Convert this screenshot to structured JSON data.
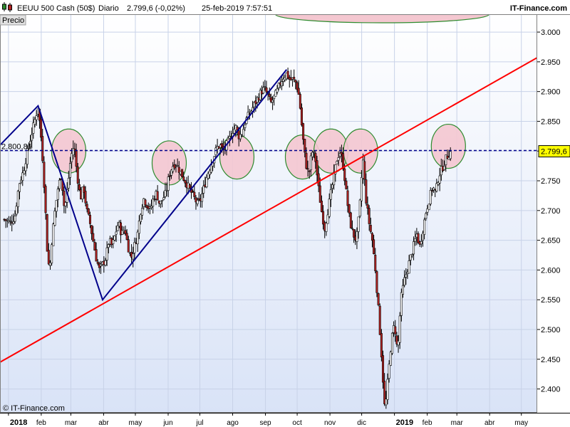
{
  "header": {
    "instrument": "EEUU 500 Cash (50$)",
    "period": "Diario",
    "last": "2.799,6 (-0,02%)",
    "datetime": "25-feb-2019 7:57:51",
    "brand": "IT-Finance.com"
  },
  "panel_label": "Precio",
  "copyright": "© IT-Finance.com",
  "chart_data": {
    "type": "candlestick",
    "ylim": [
      2360,
      3030
    ],
    "y_ticks": [
      2400,
      2450,
      2500,
      2550,
      2600,
      2650,
      2700,
      2750,
      2800,
      2850,
      2900,
      2950,
      3000
    ],
    "y_tick_labels": [
      "2.400",
      "2.450",
      "2.500",
      "2.550",
      "2.600",
      "2.650",
      "2.700",
      "2.750",
      "2.800",
      "2.850",
      "2.900",
      "2.950",
      "3.000"
    ],
    "x_ticks": [
      {
        "label": "2018",
        "day": 0,
        "year": true
      },
      {
        "label": "feb",
        "day": 31
      },
      {
        "label": "mar",
        "day": 59
      },
      {
        "label": "abr",
        "day": 90
      },
      {
        "label": "may",
        "day": 120
      },
      {
        "label": "jun",
        "day": 151
      },
      {
        "label": "jul",
        "day": 181
      },
      {
        "label": "ago",
        "day": 212
      },
      {
        "label": "sep",
        "day": 243
      },
      {
        "label": "oct",
        "day": 273
      },
      {
        "label": "nov",
        "day": 304
      },
      {
        "label": "dic",
        "day": 334
      },
      {
        "label": "2019",
        "day": 365,
        "year": true
      },
      {
        "label": "feb",
        "day": 396
      },
      {
        "label": "mar",
        "day": 424
      },
      {
        "label": "abr",
        "day": 455
      },
      {
        "label": "may",
        "day": 485
      }
    ],
    "x_range_days": [
      -8,
      500
    ],
    "price_path": [
      [
        -4,
        2685
      ],
      [
        2,
        2680
      ],
      [
        6,
        2690
      ],
      [
        10,
        2745
      ],
      [
        14,
        2765
      ],
      [
        18,
        2800
      ],
      [
        22,
        2830
      ],
      [
        26,
        2860
      ],
      [
        28,
        2875
      ],
      [
        31,
        2820
      ],
      [
        33,
        2770
      ],
      [
        35,
        2700
      ],
      [
        37,
        2620
      ],
      [
        39,
        2600
      ],
      [
        41,
        2650
      ],
      [
        44,
        2700
      ],
      [
        47,
        2740
      ],
      [
        50,
        2760
      ],
      [
        53,
        2700
      ],
      [
        56,
        2740
      ],
      [
        59,
        2790
      ],
      [
        62,
        2810
      ],
      [
        65,
        2760
      ],
      [
        68,
        2720
      ],
      [
        71,
        2740
      ],
      [
        74,
        2700
      ],
      [
        77,
        2680
      ],
      [
        80,
        2650
      ],
      [
        83,
        2620
      ],
      [
        86,
        2600
      ],
      [
        89,
        2610
      ],
      [
        92,
        2620
      ],
      [
        95,
        2650
      ],
      [
        98,
        2640
      ],
      [
        101,
        2660
      ],
      [
        104,
        2680
      ],
      [
        107,
        2660
      ],
      [
        110,
        2670
      ],
      [
        113,
        2640
      ],
      [
        116,
        2620
      ],
      [
        119,
        2640
      ],
      [
        122,
        2660
      ],
      [
        125,
        2700
      ],
      [
        128,
        2720
      ],
      [
        131,
        2710
      ],
      [
        134,
        2700
      ],
      [
        137,
        2720
      ],
      [
        140,
        2730
      ],
      [
        143,
        2710
      ],
      [
        146,
        2720
      ],
      [
        149,
        2730
      ],
      [
        152,
        2760
      ],
      [
        155,
        2775
      ],
      [
        158,
        2780
      ],
      [
        161,
        2770
      ],
      [
        164,
        2760
      ],
      [
        167,
        2750
      ],
      [
        170,
        2740
      ],
      [
        173,
        2730
      ],
      [
        176,
        2720
      ],
      [
        179,
        2710
      ],
      [
        182,
        2720
      ],
      [
        185,
        2740
      ],
      [
        188,
        2760
      ],
      [
        191,
        2775
      ],
      [
        194,
        2790
      ],
      [
        197,
        2805
      ],
      [
        200,
        2810
      ],
      [
        203,
        2800
      ],
      [
        206,
        2810
      ],
      [
        209,
        2820
      ],
      [
        212,
        2835
      ],
      [
        215,
        2840
      ],
      [
        218,
        2825
      ],
      [
        221,
        2830
      ],
      [
        224,
        2850
      ],
      [
        227,
        2860
      ],
      [
        230,
        2870
      ],
      [
        233,
        2880
      ],
      [
        236,
        2890
      ],
      [
        239,
        2900
      ],
      [
        242,
        2905
      ],
      [
        245,
        2895
      ],
      [
        248,
        2880
      ],
      [
        251,
        2890
      ],
      [
        254,
        2900
      ],
      [
        257,
        2915
      ],
      [
        260,
        2925
      ],
      [
        263,
        2930
      ],
      [
        266,
        2920
      ],
      [
        269,
        2920
      ],
      [
        272,
        2915
      ],
      [
        275,
        2890
      ],
      [
        278,
        2830
      ],
      [
        281,
        2780
      ],
      [
        284,
        2760
      ],
      [
        287,
        2800
      ],
      [
        290,
        2790
      ],
      [
        293,
        2740
      ],
      [
        296,
        2700
      ],
      [
        299,
        2670
      ],
      [
        302,
        2700
      ],
      [
        305,
        2730
      ],
      [
        308,
        2760
      ],
      [
        311,
        2790
      ],
      [
        314,
        2800
      ],
      [
        317,
        2770
      ],
      [
        320,
        2720
      ],
      [
        323,
        2680
      ],
      [
        326,
        2660
      ],
      [
        329,
        2650
      ],
      [
        332,
        2700
      ],
      [
        335,
        2790
      ],
      [
        338,
        2720
      ],
      [
        341,
        2680
      ],
      [
        344,
        2650
      ],
      [
        347,
        2600
      ],
      [
        350,
        2530
      ],
      [
        353,
        2450
      ],
      [
        356,
        2360
      ],
      [
        359,
        2420
      ],
      [
        362,
        2480
      ],
      [
        365,
        2510
      ],
      [
        368,
        2460
      ],
      [
        371,
        2550
      ],
      [
        374,
        2580
      ],
      [
        377,
        2600
      ],
      [
        380,
        2620
      ],
      [
        383,
        2640
      ],
      [
        386,
        2660
      ],
      [
        389,
        2640
      ],
      [
        392,
        2670
      ],
      [
        395,
        2700
      ],
      [
        398,
        2720
      ],
      [
        401,
        2740
      ],
      [
        404,
        2730
      ],
      [
        407,
        2760
      ],
      [
        410,
        2770
      ],
      [
        413,
        2785
      ],
      [
        416,
        2795
      ],
      [
        419,
        2800
      ]
    ],
    "annotations": {
      "horizontal_line": {
        "value": 2800.81,
        "label": "2.800,81",
        "color": "#00008b",
        "style": "dashed"
      },
      "last_price_marker": {
        "value": 2799.6,
        "label": "2.799,6",
        "color": "#ffff00"
      },
      "trendline": {
        "from": [
          -8,
          2445
        ],
        "to": [
          500,
          2957
        ],
        "color": "#ff0000"
      },
      "zigzag": {
        "points": [
          [
            -8,
            2810
          ],
          [
            28,
            2876
          ],
          [
            89,
            2550
          ],
          [
            263,
            2937
          ]
        ],
        "color": "#00008b"
      },
      "circles": [
        {
          "day": 57,
          "value": 2800
        },
        {
          "day": 152,
          "value": 2780
        },
        {
          "day": 216,
          "value": 2790
        },
        {
          "day": 278,
          "value": 2790
        },
        {
          "day": 305,
          "value": 2800
        },
        {
          "day": 333,
          "value": 2800
        },
        {
          "day": 416,
          "value": 2808
        },
        {
          "day": 340,
          "value": 3030,
          "partial": true
        }
      ]
    },
    "colors": {
      "up": "#ffffff",
      "down": "#b22222",
      "wick": "#000000",
      "bg_top": "#ffffff",
      "bg_bottom": "#d9e3f7",
      "circle_fill": "#f4c7d0",
      "circle_stroke": "#2e8b2e"
    }
  }
}
